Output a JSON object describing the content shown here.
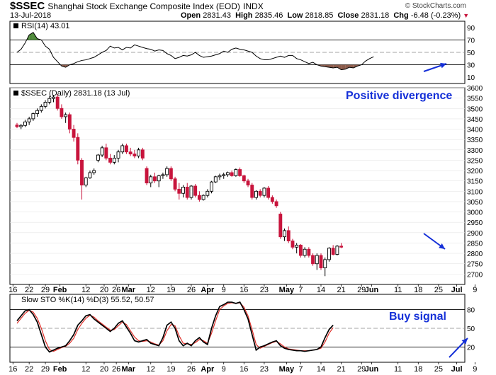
{
  "header": {
    "symbol": "$SSEC",
    "description": "Shanghai Stock Exchange Composite Index (EOD)",
    "exchange": "INDX",
    "date": "13-Jul-2018",
    "open_label": "Open",
    "open": "2831.43",
    "high_label": "High",
    "high": "2835.46",
    "low_label": "Low",
    "low": "2818.85",
    "close_label": "Close",
    "close": "2831.18",
    "chg_label": "Chg",
    "chg": "-6.48 (-0.23%)",
    "watermark": "© StockCharts.com"
  },
  "colors": {
    "up": "#000000",
    "down": "#c8143c",
    "rsi_fill": "#4e8a3a",
    "stoch_d": "#e0302a",
    "annotation": "#1530d8"
  },
  "annotations": {
    "divergence": "Positive divergence",
    "buy": "Buy signal"
  },
  "chart_data": [
    {
      "type": "line",
      "legend": "RSI(14) 43.01",
      "ylim": [
        0,
        100
      ],
      "ticks": [
        10,
        30,
        50,
        70,
        90
      ],
      "levels": [
        30,
        70
      ],
      "values": [
        50,
        55,
        65,
        78,
        82,
        72,
        70,
        60,
        55,
        42,
        35,
        28,
        26,
        30,
        32,
        35,
        37,
        38,
        40,
        42,
        46,
        50,
        53,
        60,
        57,
        58,
        54,
        58,
        57,
        62,
        60,
        58,
        56,
        55,
        52,
        54,
        53,
        48,
        45,
        40,
        42,
        45,
        44,
        46,
        50,
        45,
        42,
        43,
        44,
        46,
        48,
        52,
        50,
        55,
        57,
        55,
        54,
        52,
        50,
        44,
        40,
        38,
        38,
        40,
        42,
        44,
        42,
        45,
        45,
        40,
        38,
        35,
        32,
        34,
        30,
        28,
        27,
        26,
        25,
        26,
        22,
        23,
        26,
        25,
        28,
        30,
        36,
        40,
        43
      ]
    },
    {
      "type": "candlestick",
      "legend": "$SSEC (Daily) 2831.18 (13 Jul)",
      "ylim": [
        2650,
        3600
      ],
      "ticks": [
        2700,
        2750,
        2800,
        2850,
        2900,
        2950,
        3000,
        3050,
        3100,
        3150,
        3200,
        3250,
        3300,
        3350,
        3400,
        3450,
        3500,
        3550,
        3600
      ],
      "ohlc": [
        [
          3420,
          3430,
          3405,
          3412
        ],
        [
          3412,
          3425,
          3400,
          3418
        ],
        [
          3418,
          3445,
          3410,
          3435
        ],
        [
          3435,
          3460,
          3420,
          3450
        ],
        [
          3450,
          3480,
          3440,
          3475
        ],
        [
          3475,
          3500,
          3460,
          3490
        ],
        [
          3490,
          3520,
          3480,
          3510
        ],
        [
          3510,
          3540,
          3500,
          3530
        ],
        [
          3530,
          3560,
          3520,
          3548
        ],
        [
          3548,
          3565,
          3530,
          3555
        ],
        [
          3555,
          3570,
          3490,
          3500
        ],
        [
          3500,
          3520,
          3450,
          3460
        ],
        [
          3460,
          3480,
          3430,
          3470
        ],
        [
          3470,
          3480,
          3380,
          3400
        ],
        [
          3400,
          3420,
          3340,
          3360
        ],
        [
          3360,
          3380,
          3230,
          3250
        ],
        [
          3250,
          3260,
          3060,
          3130
        ],
        [
          3130,
          3170,
          3120,
          3165
        ],
        [
          3165,
          3200,
          3160,
          3190
        ],
        [
          3190,
          3210,
          3180,
          3200
        ],
        [
          3250,
          3280,
          3240,
          3275
        ],
        [
          3275,
          3320,
          3265,
          3310
        ],
        [
          3310,
          3330,
          3250,
          3260
        ],
        [
          3260,
          3280,
          3230,
          3240
        ],
        [
          3240,
          3275,
          3230,
          3260
        ],
        [
          3260,
          3300,
          3240,
          3290
        ],
        [
          3290,
          3330,
          3280,
          3320
        ],
        [
          3320,
          3330,
          3280,
          3290
        ],
        [
          3290,
          3310,
          3270,
          3280
        ],
        [
          3280,
          3300,
          3260,
          3270
        ],
        [
          3270,
          3310,
          3260,
          3300
        ],
        [
          3300,
          3310,
          3250,
          3260
        ],
        [
          3210,
          3220,
          3130,
          3140
        ],
        [
          3140,
          3180,
          3120,
          3170
        ],
        [
          3170,
          3190,
          3140,
          3150
        ],
        [
          3150,
          3180,
          3120,
          3175
        ],
        [
          3175,
          3190,
          3160,
          3180
        ],
        [
          3180,
          3220,
          3170,
          3210
        ],
        [
          3210,
          3220,
          3150,
          3160
        ],
        [
          3160,
          3170,
          3100,
          3110
        ],
        [
          3110,
          3140,
          3060,
          3090
        ],
        [
          3090,
          3130,
          3070,
          3120
        ],
        [
          3120,
          3140,
          3060,
          3070
        ],
        [
          3070,
          3130,
          3060,
          3125
        ],
        [
          3125,
          3135,
          3070,
          3080
        ],
        [
          3080,
          3100,
          3050,
          3060
        ],
        [
          3060,
          3085,
          3055,
          3080
        ],
        [
          3080,
          3110,
          3070,
          3100
        ],
        [
          3100,
          3150,
          3090,
          3145
        ],
        [
          3145,
          3175,
          3140,
          3170
        ],
        [
          3170,
          3185,
          3155,
          3175
        ],
        [
          3175,
          3190,
          3160,
          3180
        ],
        [
          3180,
          3195,
          3170,
          3190
        ],
        [
          3190,
          3200,
          3170,
          3175
        ],
        [
          3175,
          3210,
          3170,
          3205
        ],
        [
          3205,
          3215,
          3170,
          3175
        ],
        [
          3175,
          3180,
          3140,
          3150
        ],
        [
          3150,
          3160,
          3120,
          3130
        ],
        [
          3130,
          3140,
          3060,
          3070
        ],
        [
          3070,
          3105,
          3060,
          3100
        ],
        [
          3100,
          3110,
          3070,
          3080
        ],
        [
          3080,
          3120,
          3070,
          3115
        ],
        [
          3115,
          3125,
          3060,
          3070
        ],
        [
          3070,
          3080,
          3040,
          3050
        ],
        [
          3050,
          3060,
          3020,
          3030
        ],
        [
          2990,
          3000,
          2870,
          2880
        ],
        [
          2880,
          2920,
          2860,
          2910
        ],
        [
          2910,
          2930,
          2850,
          2860
        ],
        [
          2860,
          2870,
          2820,
          2830
        ],
        [
          2830,
          2850,
          2800,
          2840
        ],
        [
          2840,
          2845,
          2780,
          2790
        ],
        [
          2790,
          2830,
          2780,
          2820
        ],
        [
          2820,
          2830,
          2780,
          2790
        ],
        [
          2790,
          2800,
          2740,
          2750
        ],
        [
          2750,
          2800,
          2720,
          2790
        ],
        [
          2790,
          2800,
          2720,
          2730
        ],
        [
          2730,
          2780,
          2690,
          2770
        ],
        [
          2770,
          2830,
          2760,
          2825
        ],
        [
          2825,
          2840,
          2790,
          2795
        ],
        [
          2795,
          2840,
          2790,
          2835
        ],
        [
          2835,
          2850,
          2825,
          2830
        ]
      ]
    },
    {
      "type": "line",
      "legend": "Slow STO %K(14) %D(3) 55.52, 50.57",
      "ylim": [
        0,
        100
      ],
      "ticks": [
        20,
        50,
        80
      ],
      "levels": [
        20,
        80
      ],
      "series": [
        {
          "name": "%K",
          "values": [
            62,
            70,
            78,
            80,
            72,
            60,
            40,
            20,
            12,
            15,
            18,
            20,
            22,
            30,
            40,
            55,
            62,
            70,
            72,
            65,
            60,
            55,
            50,
            45,
            50,
            58,
            62,
            52,
            42,
            30,
            28,
            30,
            32,
            26,
            24,
            22,
            35,
            55,
            60,
            50,
            30,
            22,
            26,
            22,
            30,
            35,
            28,
            24,
            50,
            70,
            85,
            88,
            92,
            92,
            90,
            92,
            80,
            65,
            40,
            15,
            20,
            22,
            25,
            28,
            30,
            22,
            18,
            16,
            15,
            14,
            14,
            13,
            14,
            15,
            16,
            20,
            35,
            48,
            55
          ]
        },
        {
          "name": "%D",
          "values": [
            58,
            66,
            74,
            79,
            76,
            66,
            50,
            30,
            16,
            13,
            16,
            19,
            21,
            26,
            34,
            48,
            58,
            66,
            71,
            68,
            62,
            57,
            52,
            47,
            48,
            54,
            60,
            56,
            46,
            36,
            30,
            29,
            30,
            28,
            25,
            23,
            30,
            46,
            56,
            54,
            38,
            26,
            25,
            24,
            27,
            32,
            30,
            26,
            42,
            62,
            80,
            86,
            90,
            91,
            90,
            91,
            84,
            70,
            48,
            24,
            18,
            21,
            24,
            27,
            29,
            25,
            20,
            17,
            16,
            15,
            14,
            14,
            14,
            15,
            16,
            18,
            28,
            42,
            51
          ]
        }
      ]
    }
  ],
  "x_axis": {
    "labels": [
      {
        "text": "16",
        "i": -1,
        "bold": false
      },
      {
        "text": "22",
        "i": 3,
        "bold": false
      },
      {
        "text": "29",
        "i": 7,
        "bold": false
      },
      {
        "text": "Feb",
        "i": 10.6,
        "bold": true
      },
      {
        "text": "12",
        "i": 17,
        "bold": false
      },
      {
        "text": "20",
        "i": 21.5,
        "bold": false
      },
      {
        "text": "26",
        "i": 24.5,
        "bold": false
      },
      {
        "text": "Mar",
        "i": 27.5,
        "bold": true
      },
      {
        "text": "12",
        "i": 33,
        "bold": false
      },
      {
        "text": "19",
        "i": 38,
        "bold": false
      },
      {
        "text": "26",
        "i": 43,
        "bold": false
      },
      {
        "text": "Apr",
        "i": 47,
        "bold": true
      },
      {
        "text": "9",
        "i": 51,
        "bold": false
      },
      {
        "text": "16",
        "i": 56,
        "bold": false
      },
      {
        "text": "23",
        "i": 61,
        "bold": false
      },
      {
        "text": "May",
        "i": 66.5,
        "bold": true
      },
      {
        "text": "7",
        "i": 70,
        "bold": false
      },
      {
        "text": "14",
        "i": 75,
        "bold": false
      },
      {
        "text": "21",
        "i": 80,
        "bold": false
      },
      {
        "text": "29",
        "i": 85,
        "bold": false
      },
      {
        "text": "Jun",
        "i": 87.5,
        "bold": true
      },
      {
        "text": "11",
        "i": 94,
        "bold": false
      },
      {
        "text": "18",
        "i": 99,
        "bold": false
      },
      {
        "text": "25",
        "i": 104,
        "bold": false
      },
      {
        "text": "Jul",
        "i": 108.5,
        "bold": true
      },
      {
        "text": "9",
        "i": 113,
        "bold": false
      }
    ]
  }
}
